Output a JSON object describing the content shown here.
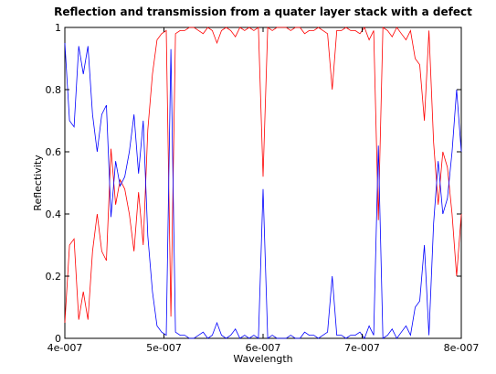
{
  "chart_data": {
    "type": "line",
    "title": "Reflection and transmission from a quater layer stack with a defect",
    "xlabel": "Wavelength",
    "ylabel": "Reflectivity",
    "xlim": [
      4e-07,
      8e-07
    ],
    "ylim": [
      0,
      1
    ],
    "xticks": [
      4e-07,
      5e-07,
      6e-07,
      7e-07,
      8e-07
    ],
    "xtick_labels": [
      "4e-007",
      "5e-007",
      "6e-007",
      "7e-007",
      "8e-007"
    ],
    "yticks": [
      0,
      0.2,
      0.4,
      0.6,
      0.8,
      1
    ],
    "ytick_labels": [
      "0",
      "0.2",
      "0.4",
      "0.6",
      "0.8",
      "1"
    ],
    "grid": false,
    "x": [
      4e-07,
      4.047e-07,
      4.093e-07,
      4.14e-07,
      4.186e-07,
      4.233e-07,
      4.279e-07,
      4.326e-07,
      4.372e-07,
      4.419e-07,
      4.465e-07,
      4.512e-07,
      4.558e-07,
      4.605e-07,
      4.651e-07,
      4.698e-07,
      4.744e-07,
      4.791e-07,
      4.837e-07,
      4.884e-07,
      4.93e-07,
      4.977e-07,
      5.023e-07,
      5.07e-07,
      5.116e-07,
      5.163e-07,
      5.209e-07,
      5.256e-07,
      5.302e-07,
      5.349e-07,
      5.395e-07,
      5.442e-07,
      5.488e-07,
      5.535e-07,
      5.581e-07,
      5.628e-07,
      5.674e-07,
      5.721e-07,
      5.767e-07,
      5.814e-07,
      5.86e-07,
      5.907e-07,
      5.953e-07,
      6e-07,
      6.047e-07,
      6.093e-07,
      6.14e-07,
      6.186e-07,
      6.233e-07,
      6.279e-07,
      6.326e-07,
      6.372e-07,
      6.419e-07,
      6.465e-07,
      6.512e-07,
      6.558e-07,
      6.605e-07,
      6.651e-07,
      6.698e-07,
      6.744e-07,
      6.791e-07,
      6.837e-07,
      6.884e-07,
      6.93e-07,
      6.977e-07,
      7.023e-07,
      7.07e-07,
      7.116e-07,
      7.163e-07,
      7.209e-07,
      7.256e-07,
      7.302e-07,
      7.349e-07,
      7.395e-07,
      7.442e-07,
      7.488e-07,
      7.535e-07,
      7.581e-07,
      7.628e-07,
      7.674e-07,
      7.721e-07,
      7.767e-07,
      7.814e-07,
      7.86e-07,
      7.907e-07,
      7.953e-07,
      8e-07
    ],
    "series": [
      {
        "color": "#ff0000",
        "values": [
          0.05,
          0.3,
          0.32,
          0.06,
          0.15,
          0.06,
          0.28,
          0.4,
          0.28,
          0.25,
          0.61,
          0.43,
          0.51,
          0.48,
          0.4,
          0.28,
          0.47,
          0.3,
          0.67,
          0.85,
          0.96,
          0.98,
          0.99,
          0.07,
          0.98,
          0.99,
          0.99,
          1.0,
          1.0,
          0.99,
          0.98,
          1.0,
          0.99,
          0.95,
          0.99,
          1.0,
          0.99,
          0.97,
          1.0,
          0.99,
          1.0,
          0.99,
          1.0,
          0.52,
          1.0,
          0.99,
          1.0,
          1.0,
          1.0,
          0.99,
          1.0,
          1.0,
          0.98,
          0.99,
          0.99,
          1.0,
          0.99,
          0.98,
          0.8,
          0.99,
          0.99,
          1.0,
          0.99,
          0.99,
          0.98,
          1.0,
          0.96,
          0.99,
          0.38,
          1.0,
          0.99,
          0.97,
          1.0,
          0.98,
          0.96,
          0.99,
          0.9,
          0.88,
          0.7,
          0.99,
          0.63,
          0.43,
          0.6,
          0.55,
          0.4,
          0.2,
          0.4
        ],
        "name": ""
      },
      {
        "color": "#0000ff",
        "values": [
          0.95,
          0.7,
          0.68,
          0.94,
          0.85,
          0.94,
          0.72,
          0.6,
          0.72,
          0.75,
          0.39,
          0.57,
          0.49,
          0.52,
          0.6,
          0.72,
          0.53,
          0.7,
          0.33,
          0.15,
          0.04,
          0.02,
          0.01,
          0.93,
          0.02,
          0.01,
          0.01,
          0.0,
          0.0,
          0.01,
          0.02,
          0.0,
          0.01,
          0.05,
          0.01,
          0.0,
          0.01,
          0.03,
          0.0,
          0.01,
          0.0,
          0.01,
          0.0,
          0.48,
          0.0,
          0.01,
          0.0,
          0.0,
          0.0,
          0.01,
          0.0,
          0.0,
          0.02,
          0.01,
          0.01,
          0.0,
          0.01,
          0.02,
          0.2,
          0.01,
          0.01,
          0.0,
          0.01,
          0.01,
          0.02,
          0.0,
          0.04,
          0.01,
          0.62,
          0.0,
          0.01,
          0.03,
          0.0,
          0.02,
          0.04,
          0.01,
          0.1,
          0.12,
          0.3,
          0.01,
          0.37,
          0.57,
          0.4,
          0.45,
          0.6,
          0.8,
          0.6
        ],
        "name": ""
      }
    ]
  }
}
